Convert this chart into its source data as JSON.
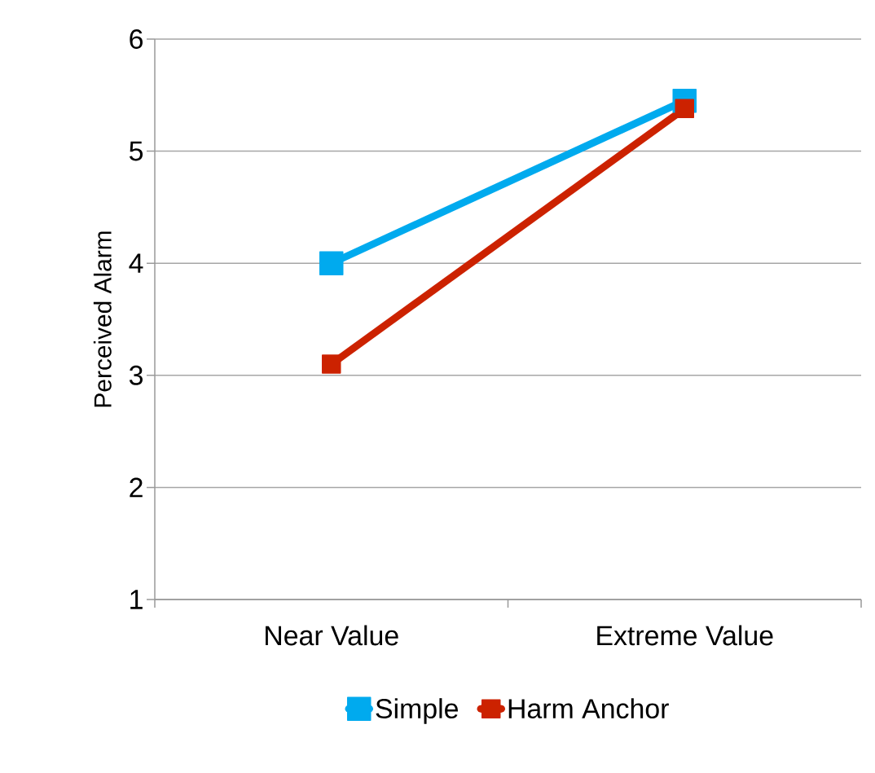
{
  "chart_data": {
    "type": "line",
    "ylabel": "Perceived Alarm",
    "categories": [
      "Near Value",
      "Extreme Value"
    ],
    "series": [
      {
        "name": "Simple",
        "color": "#00aaee",
        "values": [
          4.0,
          5.45
        ]
      },
      {
        "name": "Harm Anchor",
        "color": "#cc2200",
        "values": [
          3.1,
          5.38
        ]
      }
    ],
    "ylim": [
      1,
      6
    ],
    "yticks": [
      1,
      2,
      3,
      4,
      5,
      6
    ],
    "grid": "y",
    "legend": "bottom",
    "marker": "square",
    "line_style": "solid"
  }
}
